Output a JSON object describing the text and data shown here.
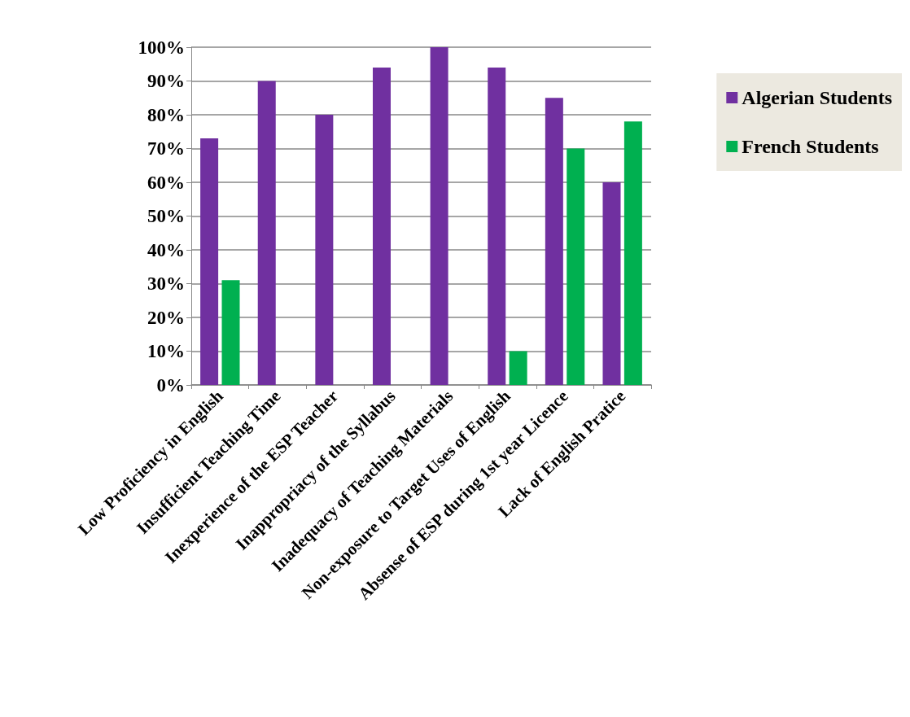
{
  "chart_data": {
    "type": "bar",
    "categories": [
      "Low Proficiency in English",
      "Insufficient Teaching Time",
      "Inexperience of the ESP Teacher",
      "Inappropriacy of the Syllabus",
      "Inadequacy of Teaching Materials",
      "Non-exposure to Target Uses of English",
      "Absense of ESP during 1st year Licence",
      "Lack of English Pratice"
    ],
    "series": [
      {
        "name": "Algerian Students",
        "color": "#7030a0",
        "values": [
          73,
          90,
          80,
          94,
          100,
          94,
          85,
          60
        ]
      },
      {
        "name": "French Students",
        "color": "#00b050",
        "values": [
          31,
          0,
          0,
          0,
          0,
          10,
          70,
          78
        ]
      }
    ],
    "ylim": [
      0,
      100
    ],
    "yticks": [
      {
        "value": 0,
        "label": "0%"
      },
      {
        "value": 10,
        "label": "10%"
      },
      {
        "value": 20,
        "label": "20%"
      },
      {
        "value": 30,
        "label": "30%"
      },
      {
        "value": 40,
        "label": "40%"
      },
      {
        "value": 50,
        "label": "50%"
      },
      {
        "value": 60,
        "label": "60%"
      },
      {
        "value": 70,
        "label": "70%"
      },
      {
        "value": 80,
        "label": "80%"
      },
      {
        "value": 90,
        "label": "90%"
      },
      {
        "value": 100,
        "label": "100%"
      }
    ],
    "grid": "y",
    "legend": "right"
  }
}
